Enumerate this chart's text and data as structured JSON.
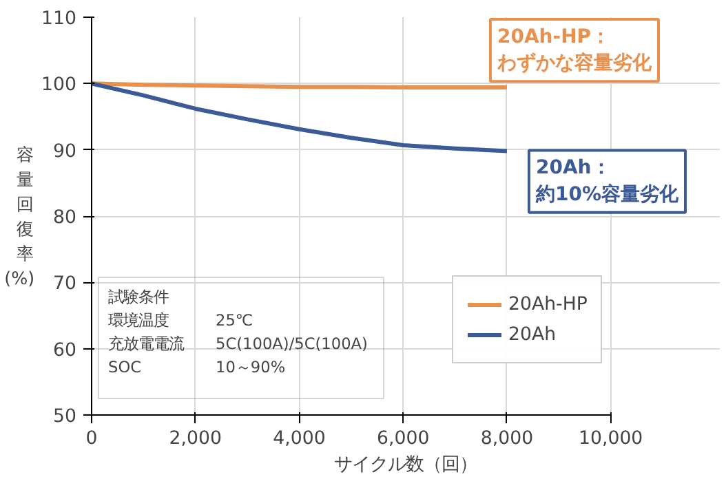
{
  "chart_data": {
    "type": "line",
    "xlabel": "サイクル数（回）",
    "ylabel": "容量回復率(%)",
    "x": [
      0,
      1000,
      2000,
      3000,
      4000,
      5000,
      6000,
      7000,
      8000
    ],
    "series": [
      {
        "name": "20Ah-HP",
        "color": "#e8914f",
        "values": [
          100,
          99.8,
          99.7,
          99.6,
          99.5,
          99.5,
          99.4,
          99.4,
          99.4
        ]
      },
      {
        "name": "20Ah",
        "color": "#3c5a96",
        "values": [
          100,
          98.2,
          96.2,
          94.6,
          93.1,
          91.8,
          90.7,
          90.2,
          89.8
        ]
      }
    ],
    "xlim": [
      0,
      10000
    ],
    "xticks": [
      {
        "value": 0,
        "label": "0"
      },
      {
        "value": 2000,
        "label": "2,000"
      },
      {
        "value": 4000,
        "label": "4,000"
      },
      {
        "value": 6000,
        "label": "6,000"
      },
      {
        "value": 8000,
        "label": "8,000"
      },
      {
        "value": 10000,
        "label": "10,000"
      }
    ],
    "ylim": [
      50,
      110
    ],
    "yticks": [
      50,
      60,
      70,
      80,
      90,
      100,
      110
    ],
    "grid": true,
    "legend": "right",
    "line_style": "solid",
    "marker": "none",
    "annotations": [
      {
        "text": "20Ah-HP：わずかな容量劣化",
        "x": 8000,
        "y": 99.4
      },
      {
        "text": "20Ah：約10%容量劣化",
        "x": 8000,
        "y": 89.8
      },
      "試験条件",
      "環境温度",
      "25℃",
      "充放電電流",
      "5C(100A)/5C(100A)",
      "SOC",
      "10～90%"
    ]
  }
}
